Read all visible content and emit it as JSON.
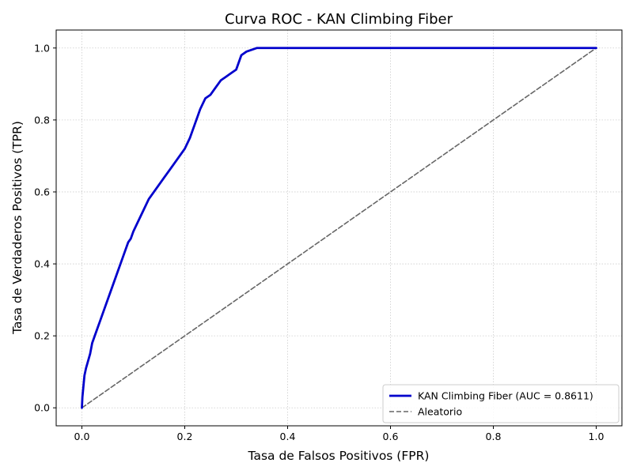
{
  "chart_data": {
    "type": "line",
    "title": "Curva ROC - KAN Climbing Fiber",
    "xlabel": "Tasa de Falsos Positivos (FPR)",
    "ylabel": "Tasa de Verdaderos Positivos (TPR)",
    "xlim": [
      -0.05,
      1.05
    ],
    "ylim": [
      -0.05,
      1.05
    ],
    "xticks": [
      0.0,
      0.2,
      0.4,
      0.6,
      0.8,
      1.0
    ],
    "yticks": [
      0.0,
      0.2,
      0.4,
      0.6,
      0.8,
      1.0
    ],
    "xtick_labels": [
      "0.0",
      "0.2",
      "0.4",
      "0.6",
      "0.8",
      "1.0"
    ],
    "ytick_labels": [
      "0.0",
      "0.2",
      "0.4",
      "0.6",
      "0.8",
      "1.0"
    ],
    "grid": true,
    "legend_position": "bottom-right",
    "series": [
      {
        "name": "KAN Climbing Fiber (AUC = 0.8611)",
        "color": "#0000cc",
        "style": "solid",
        "x": [
          0.0,
          0.001,
          0.003,
          0.005,
          0.008,
          0.012,
          0.016,
          0.02,
          0.025,
          0.03,
          0.035,
          0.04,
          0.045,
          0.05,
          0.055,
          0.06,
          0.065,
          0.07,
          0.075,
          0.08,
          0.085,
          0.09,
          0.095,
          0.1,
          0.11,
          0.12,
          0.13,
          0.14,
          0.15,
          0.16,
          0.17,
          0.18,
          0.19,
          0.2,
          0.21,
          0.22,
          0.23,
          0.24,
          0.25,
          0.26,
          0.27,
          0.28,
          0.29,
          0.3,
          0.305,
          0.31,
          0.32,
          0.33,
          0.34,
          0.35,
          0.36,
          1.0
        ],
        "y": [
          0.0,
          0.03,
          0.06,
          0.09,
          0.11,
          0.13,
          0.15,
          0.18,
          0.2,
          0.22,
          0.24,
          0.26,
          0.28,
          0.3,
          0.32,
          0.34,
          0.36,
          0.38,
          0.4,
          0.42,
          0.44,
          0.46,
          0.47,
          0.49,
          0.52,
          0.55,
          0.58,
          0.6,
          0.62,
          0.64,
          0.66,
          0.68,
          0.7,
          0.72,
          0.75,
          0.79,
          0.83,
          0.86,
          0.87,
          0.89,
          0.91,
          0.92,
          0.93,
          0.94,
          0.96,
          0.98,
          0.99,
          0.995,
          1.0,
          1.0,
          1.0,
          1.0
        ]
      },
      {
        "name": "Aleatorio",
        "color": "#666666",
        "style": "dashed",
        "x": [
          0.0,
          1.0
        ],
        "y": [
          0.0,
          1.0
        ]
      }
    ]
  }
}
